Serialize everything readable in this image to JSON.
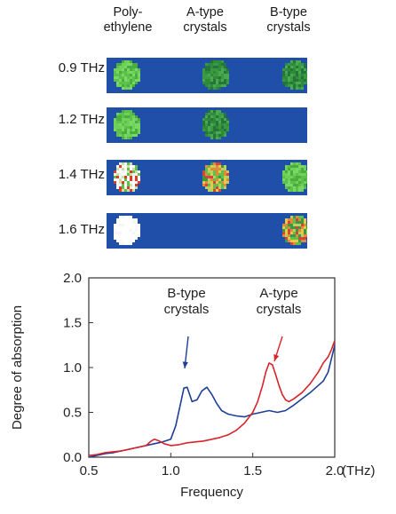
{
  "colors": {
    "strip_background": "#1f4fa8",
    "series_b": "#1e3f96",
    "series_a": "#d8232a"
  },
  "imaging": {
    "columns": [
      "Poly-\nethylene",
      "A-type\ncrystals",
      "B-type\ncrystals"
    ],
    "rows": [
      {
        "label": "0.9 THz",
        "cells": [
          "green",
          "dark-green",
          "dark-green"
        ]
      },
      {
        "label": "1.2 THz",
        "cells": [
          "green",
          "dark-green",
          "none"
        ]
      },
      {
        "label": "1.4 THz",
        "cells": [
          "white-red",
          "mixed",
          "green"
        ]
      },
      {
        "label": "1.6 THz",
        "cells": [
          "white",
          "none",
          "mixed"
        ]
      }
    ]
  },
  "chart_data": {
    "type": "line",
    "xlabel": "Frequency",
    "xunit": "(THz)",
    "ylabel": "Degree of absorption",
    "xlim": [
      0.5,
      2.0
    ],
    "ylim": [
      0.0,
      2.0
    ],
    "xticks": [
      "0.5",
      "1.0",
      "1.5",
      "2.0"
    ],
    "yticks": [
      "0.0",
      "0.5",
      "1.0",
      "1.5",
      "2.0"
    ],
    "grid": false,
    "annotations": [
      {
        "text": "B-type\ncrystals",
        "series": "B-type crystals"
      },
      {
        "text": "A-type\ncrystals",
        "series": "A-type crystals"
      }
    ],
    "series": [
      {
        "name": "B-type crystals",
        "color": "#1e3f96",
        "x": [
          0.5,
          0.55,
          0.6,
          0.65,
          0.7,
          0.75,
          0.8,
          0.85,
          0.9,
          0.95,
          1.0,
          1.03,
          1.06,
          1.08,
          1.1,
          1.13,
          1.16,
          1.19,
          1.22,
          1.25,
          1.28,
          1.31,
          1.35,
          1.4,
          1.45,
          1.5,
          1.55,
          1.6,
          1.65,
          1.7,
          1.75,
          1.8,
          1.85,
          1.9,
          1.93,
          1.96,
          1.98,
          2.0
        ],
        "y": [
          0.0,
          0.02,
          0.04,
          0.05,
          0.07,
          0.09,
          0.11,
          0.13,
          0.15,
          0.17,
          0.2,
          0.35,
          0.6,
          0.77,
          0.78,
          0.62,
          0.64,
          0.74,
          0.78,
          0.7,
          0.6,
          0.52,
          0.48,
          0.46,
          0.45,
          0.48,
          0.5,
          0.52,
          0.5,
          0.52,
          0.58,
          0.65,
          0.72,
          0.8,
          0.85,
          0.95,
          1.1,
          1.25
        ]
      },
      {
        "name": "A-type crystals",
        "color": "#d8232a",
        "x": [
          0.5,
          0.55,
          0.6,
          0.65,
          0.7,
          0.75,
          0.8,
          0.85,
          0.88,
          0.9,
          0.93,
          0.96,
          1.0,
          1.05,
          1.1,
          1.15,
          1.2,
          1.25,
          1.3,
          1.35,
          1.4,
          1.45,
          1.5,
          1.53,
          1.56,
          1.58,
          1.6,
          1.62,
          1.64,
          1.66,
          1.68,
          1.7,
          1.72,
          1.75,
          1.8,
          1.85,
          1.9,
          1.93,
          1.96,
          1.98,
          2.0
        ],
        "y": [
          0.02,
          0.03,
          0.05,
          0.06,
          0.07,
          0.09,
          0.11,
          0.13,
          0.18,
          0.2,
          0.18,
          0.15,
          0.13,
          0.14,
          0.16,
          0.17,
          0.18,
          0.2,
          0.22,
          0.25,
          0.3,
          0.38,
          0.5,
          0.62,
          0.8,
          0.95,
          1.05,
          1.03,
          0.92,
          0.8,
          0.7,
          0.64,
          0.62,
          0.65,
          0.72,
          0.82,
          0.95,
          1.05,
          1.12,
          1.2,
          1.3
        ]
      }
    ]
  }
}
